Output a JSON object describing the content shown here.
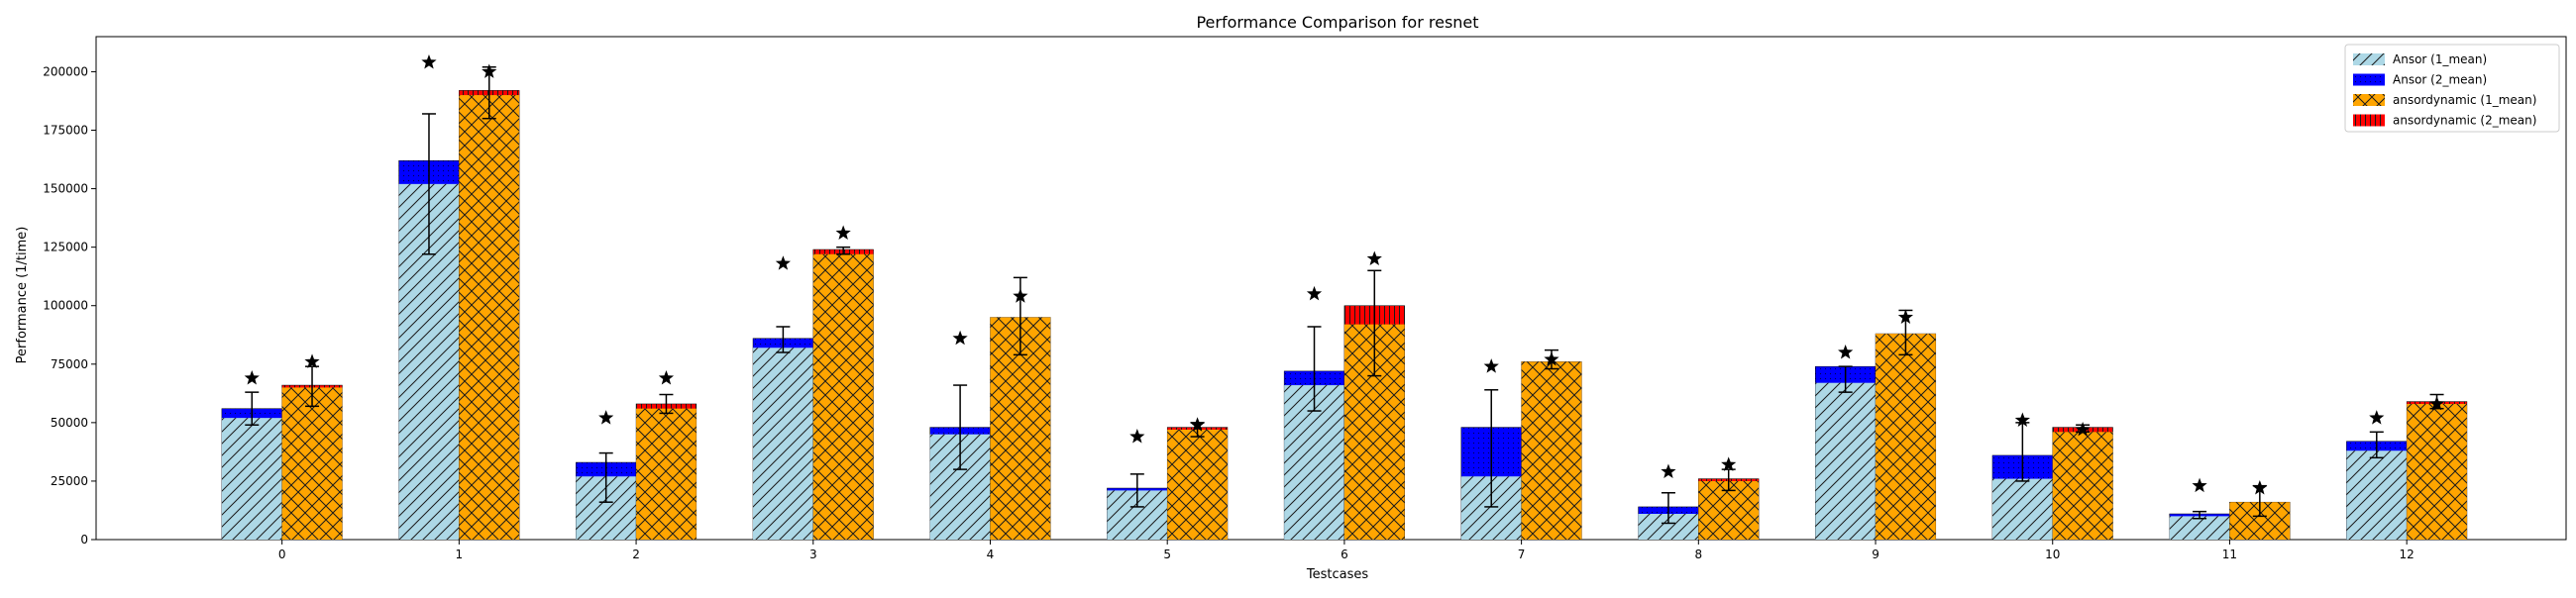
{
  "chart_data": {
    "type": "bar",
    "title": "Performance Comparison for resnet",
    "xlabel": "Testcases",
    "ylabel": "Performance (1/time)",
    "categories": [
      "0",
      "1",
      "2",
      "3",
      "4",
      "5",
      "6",
      "7",
      "8",
      "9",
      "10",
      "11",
      "12"
    ],
    "ylim": [
      0,
      215000
    ],
    "yticks": [
      0,
      25000,
      50000,
      75000,
      100000,
      125000,
      150000,
      175000,
      200000
    ],
    "ytick_labels": [
      "0",
      "25000",
      "50000",
      "75000",
      "100000",
      "125000",
      "150000",
      "175000",
      "200000"
    ],
    "legend_position": "top-right",
    "groups": [
      {
        "name": "Ansor",
        "mean1": [
          52000,
          152000,
          27000,
          82000,
          45000,
          21000,
          66000,
          27000,
          11000,
          67000,
          26000,
          10000,
          38000
        ],
        "mean2": [
          56000,
          162000,
          33000,
          86000,
          48000,
          22000,
          72000,
          48000,
          14000,
          74000,
          36000,
          11000,
          42000
        ],
        "err_low": [
          49000,
          122000,
          16000,
          80000,
          30000,
          14000,
          55000,
          14000,
          7000,
          63000,
          25000,
          9000,
          35000
        ],
        "err_high": [
          63000,
          182000,
          37000,
          91000,
          66000,
          28000,
          91000,
          64000,
          20000,
          74000,
          50000,
          12000,
          46000
        ],
        "star": [
          69000,
          204000,
          52000,
          118000,
          86000,
          44000,
          105000,
          74000,
          29000,
          80000,
          51000,
          23000,
          52000
        ]
      },
      {
        "name": "ansordynamic",
        "mean1": [
          65000,
          190000,
          56000,
          122000,
          95000,
          47000,
          92000,
          76000,
          25000,
          88000,
          46000,
          16000,
          58000
        ],
        "mean2": [
          66000,
          192000,
          58000,
          124000,
          95000,
          48000,
          100000,
          76000,
          26000,
          88000,
          48000,
          16000,
          59000
        ],
        "err_low": [
          57000,
          180000,
          54000,
          122000,
          79000,
          44000,
          70000,
          73000,
          21000,
          79000,
          46000,
          10000,
          56000
        ],
        "err_high": [
          74000,
          202000,
          62000,
          125000,
          112000,
          50000,
          115000,
          81000,
          30000,
          98000,
          49000,
          23000,
          62000
        ],
        "star": [
          76000,
          200000,
          69000,
          131000,
          104000,
          49000,
          120000,
          77000,
          32000,
          95000,
          47000,
          22000,
          58000
        ]
      }
    ],
    "legend": [
      {
        "label": "Ansor (1_mean)",
        "color": "#add8e6",
        "hatch": "diag"
      },
      {
        "label": "Ansor (2_mean)",
        "color": "#0000ff",
        "hatch": "dots"
      },
      {
        "label": "ansordynamic (1_mean)",
        "color": "#ffa500",
        "hatch": "cross"
      },
      {
        "label": "ansordynamic (2_mean)",
        "color": "#ff0000",
        "hatch": "vert"
      }
    ]
  }
}
